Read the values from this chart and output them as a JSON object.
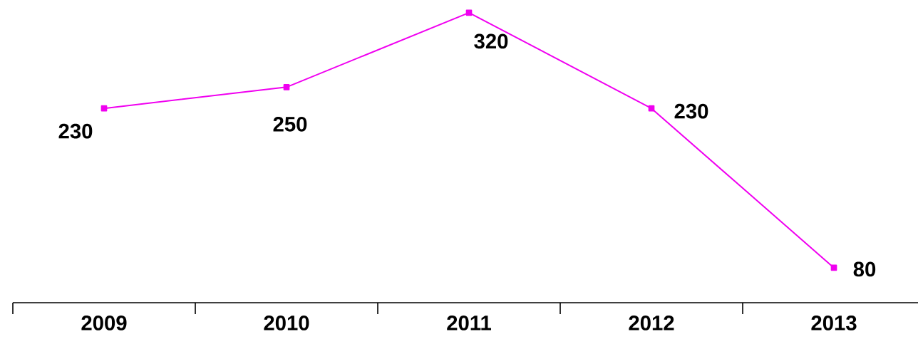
{
  "chart_data": {
    "type": "line",
    "categories": [
      "2009",
      "2010",
      "2011",
      "2012",
      "2013"
    ],
    "series": [
      {
        "color": "#f000f0",
        "values": [
          230,
          250,
          320,
          230,
          80
        ]
      }
    ],
    "data_labels": true,
    "marker": "square",
    "line_style": "solid",
    "tick_labels": "x"
  }
}
